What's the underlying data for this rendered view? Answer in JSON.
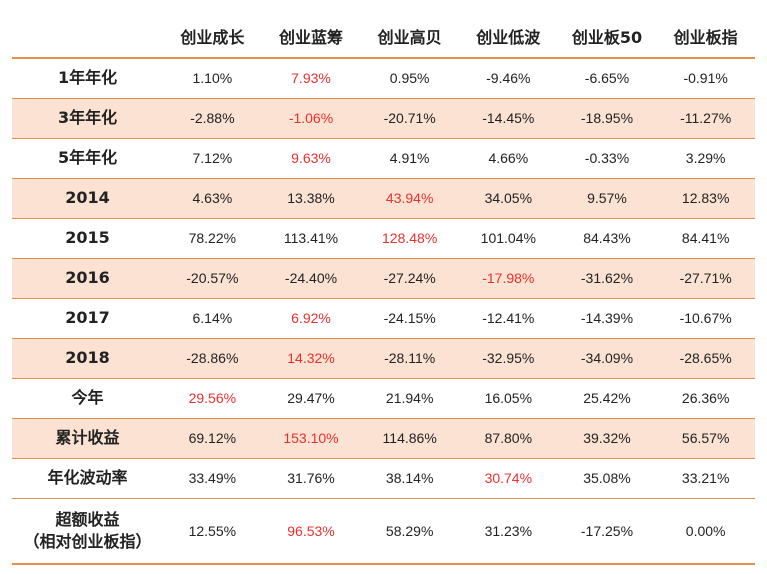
{
  "columns": [
    "",
    "创业成长",
    "创业蓝筹",
    "创业高贝",
    "创业低波",
    "创业板50",
    "创业板指"
  ],
  "rows": [
    {
      "label": [
        "1年年化"
      ],
      "values": [
        "1.10%",
        "7.93%",
        "0.95%",
        "-9.46%",
        "-6.65%",
        "-0.91%"
      ],
      "highlight": 1,
      "shaded": false
    },
    {
      "label": [
        "3年年化"
      ],
      "values": [
        "-2.88%",
        "-1.06%",
        "-20.71%",
        "-14.45%",
        "-18.95%",
        "-11.27%"
      ],
      "highlight": 1,
      "shaded": true
    },
    {
      "label": [
        "5年年化"
      ],
      "values": [
        "7.12%",
        "9.63%",
        "4.91%",
        "4.66%",
        "-0.33%",
        "3.29%"
      ],
      "highlight": 1,
      "shaded": false
    },
    {
      "label": [
        "2014"
      ],
      "values": [
        "4.63%",
        "13.38%",
        "43.94%",
        "34.05%",
        "9.57%",
        "12.83%"
      ],
      "highlight": 2,
      "shaded": true
    },
    {
      "label": [
        "2015"
      ],
      "values": [
        "78.22%",
        "113.41%",
        "128.48%",
        "101.04%",
        "84.43%",
        "84.41%"
      ],
      "highlight": 2,
      "shaded": false
    },
    {
      "label": [
        "2016"
      ],
      "values": [
        "-20.57%",
        "-24.40%",
        "-27.24%",
        "-17.98%",
        "-31.62%",
        "-27.71%"
      ],
      "highlight": 3,
      "shaded": true
    },
    {
      "label": [
        "2017"
      ],
      "values": [
        "6.14%",
        "6.92%",
        "-24.15%",
        "-12.41%",
        "-14.39%",
        "-10.67%"
      ],
      "highlight": 1,
      "shaded": false
    },
    {
      "label": [
        "2018"
      ],
      "values": [
        "-28.86%",
        "14.32%",
        "-28.11%",
        "-32.95%",
        "-34.09%",
        "-28.65%"
      ],
      "highlight": 1,
      "shaded": true
    },
    {
      "label": [
        "今年"
      ],
      "values": [
        "29.56%",
        "29.47%",
        "21.94%",
        "16.05%",
        "25.42%",
        "26.36%"
      ],
      "highlight": 0,
      "shaded": false
    },
    {
      "label": [
        "累计收益"
      ],
      "values": [
        "69.12%",
        "153.10%",
        "114.86%",
        "87.80%",
        "39.32%",
        "56.57%"
      ],
      "highlight": 1,
      "shaded": true
    },
    {
      "label": [
        "年化波动率"
      ],
      "values": [
        "33.49%",
        "31.76%",
        "38.14%",
        "30.74%",
        "35.08%",
        "33.21%"
      ],
      "highlight": 3,
      "shaded": false
    },
    {
      "label": [
        "超额收益",
        "（相对创业板指）"
      ],
      "values": [
        "12.55%",
        "96.53%",
        "58.29%",
        "31.23%",
        "-17.25%",
        "0.00%"
      ],
      "highlight": 1,
      "shaded": false
    }
  ],
  "colors": {
    "accent_border": "#e8904a",
    "row_shade": "#fbe2d3",
    "highlight_text": "#e8312f"
  }
}
